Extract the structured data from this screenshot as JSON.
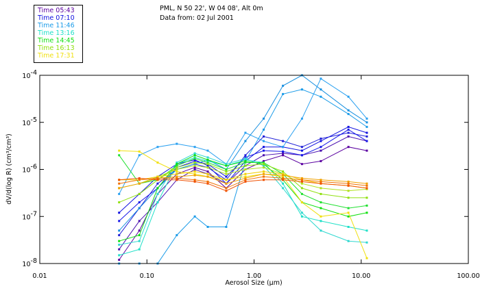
{
  "header": {
    "title_line1": "PML, N 50 22', W 04 08', Alt 0m",
    "title_line2": "Data from: 02 Jul 2001"
  },
  "legend": [
    {
      "label": "Time 05:43",
      "color": "#5a00a0"
    },
    {
      "label": "Time 07:10",
      "color": "#1010e0"
    },
    {
      "label": "Time 11:46",
      "color": "#1a9be8"
    },
    {
      "label": "Time 13:16",
      "color": "#20e0c8"
    },
    {
      "label": "Time 14:45",
      "color": "#10e010"
    },
    {
      "label": "Time 16:13",
      "color": "#90e010"
    },
    {
      "label": "Time 17:31",
      "color": "#f0e010"
    }
  ],
  "chart_data": {
    "type": "line",
    "title": "PML, N 50 22', W 04 08', Alt 0m",
    "subtitle": "Data from: 02 Jul 2001",
    "xlabel": "Aerosol Size (µm)",
    "ylabel": "dV/d(log R) (cm³/cm³)",
    "xscale": "log",
    "yscale": "log",
    "xlim": [
      0.01,
      100
    ],
    "ylim": [
      1e-08,
      0.0001
    ],
    "xticks": [
      {
        "value": 0.01,
        "label": "0.01"
      },
      {
        "value": 0.1,
        "label": "0.10"
      },
      {
        "value": 1,
        "label": "1.00"
      },
      {
        "value": 10,
        "label": "10.00"
      },
      {
        "value": 100,
        "label": "100.00"
      }
    ],
    "yticks": [
      {
        "value": 0.0001,
        "base": "10",
        "exp": "-4"
      },
      {
        "value": 1e-05,
        "base": "10",
        "exp": "-5"
      },
      {
        "value": 1e-06,
        "base": "10",
        "exp": "-6"
      },
      {
        "value": 1e-07,
        "base": "10",
        "exp": "-7"
      },
      {
        "value": 1e-08,
        "base": "10",
        "exp": "-8"
      }
    ],
    "legend_position": "top-left-outside",
    "grid": false,
    "x": [
      0.055,
      0.085,
      0.126,
      0.19,
      0.28,
      0.37,
      0.55,
      0.83,
      1.23,
      1.86,
      2.8,
      4.2,
      7.6,
      11.3
    ],
    "series": [
      {
        "name": "Time 05:43",
        "color": "#5a00a0",
        "values": [
          1.2e-08,
          5e-08,
          3e-07,
          8e-07,
          1.1e-06,
          9e-07,
          4e-07,
          1e-06,
          1.5e-06,
          2e-06,
          1.3e-06,
          1.5e-06,
          3e-06,
          2.5e-06
        ]
      },
      {
        "name": "Time 05:43",
        "color": "#4a10b0",
        "values": [
          2e-08,
          8e-08,
          2e-07,
          6e-07,
          1e-06,
          8e-07,
          5e-07,
          1.2e-06,
          2e-06,
          2.2e-06,
          2e-06,
          2.5e-06,
          5e-06,
          4e-06
        ]
      },
      {
        "name": "Time 07:10",
        "color": "#1010e0",
        "values": [
          1.2e-07,
          3e-07,
          7e-07,
          1.3e-06,
          1.6e-06,
          1.2e-06,
          5e-07,
          1.5e-06,
          3e-06,
          3e-06,
          2.5e-06,
          4e-06,
          8e-06,
          6e-06
        ]
      },
      {
        "name": "Time 07:10",
        "color": "#2020d8",
        "values": [
          4e-08,
          1.5e-07,
          5e-07,
          1e-06,
          1.3e-06,
          1.1e-06,
          6e-07,
          2e-06,
          5e-06,
          4e-06,
          3e-06,
          4.5e-06,
          6e-06,
          5e-06
        ]
      },
      {
        "name": "Time 07:10",
        "color": "#1818e8",
        "values": [
          8e-08,
          2e-07,
          4e-07,
          1.1e-06,
          1.5e-06,
          1.3e-06,
          7e-07,
          1.8e-06,
          2.5e-06,
          2.4e-06,
          2e-06,
          3e-06,
          7e-06,
          4e-06
        ]
      },
      {
        "name": "Time 11:46",
        "color": "#1a9be8",
        "values": [
          1e-08,
          1e-08,
          1e-08,
          4e-08,
          1e-07,
          6e-08,
          6e-08,
          1.5e-06,
          7e-06,
          4e-05,
          5e-05,
          3.5e-05,
          1.5e-05,
          8e-06
        ]
      },
      {
        "name": "Time 11:46",
        "color": "#2aa0f0",
        "values": [
          3e-07,
          2e-06,
          3e-06,
          3.5e-06,
          3e-06,
          2.5e-06,
          1.3e-06,
          6e-06,
          4e-06,
          3e-06,
          1.2e-05,
          8.5e-05,
          3.5e-05,
          1.2e-05
        ]
      },
      {
        "name": "Time 11:46",
        "color": "#1890e0",
        "values": [
          5e-08,
          1.5e-07,
          4e-07,
          1e-06,
          1.3e-06,
          1.6e-06,
          1e-06,
          4e-06,
          1.2e-05,
          6e-05,
          0.0001,
          5e-05,
          1.8e-05,
          1e-05
        ]
      },
      {
        "name": "Time 13:16",
        "color": "#20e0c8",
        "values": [
          1.5e-08,
          2e-08,
          2e-07,
          1.3e-06,
          1.8e-06,
          1.5e-06,
          1.2e-06,
          1.6e-06,
          1.4e-06,
          5e-07,
          1e-07,
          8e-08,
          6e-08,
          5e-08
        ]
      },
      {
        "name": "Time 13:16",
        "color": "#30d8d0",
        "values": [
          2.5e-08,
          3e-08,
          3e-07,
          1.4e-06,
          2.2e-06,
          1.8e-06,
          1.3e-06,
          1.7e-06,
          1.2e-06,
          4e-07,
          1.2e-07,
          5e-08,
          3e-08,
          2.8e-08
        ]
      },
      {
        "name": "Time 14:45",
        "color": "#10e010",
        "values": [
          3e-08,
          4e-08,
          4e-07,
          1.3e-06,
          2e-06,
          1.6e-06,
          1.2e-06,
          1.5e-06,
          1.3e-06,
          6e-07,
          2e-07,
          1.5e-07,
          1e-07,
          1.2e-07
        ]
      },
      {
        "name": "Time 14:45",
        "color": "#20e030",
        "values": [
          2e-06,
          5e-07,
          6e-07,
          1.2e-06,
          1.7e-06,
          1.4e-06,
          1e-06,
          1.4e-06,
          1.4e-06,
          8e-07,
          3e-07,
          2e-07,
          1.5e-07,
          1.7e-07
        ]
      },
      {
        "name": "Time 16:13",
        "color": "#90e010",
        "values": [
          2e-07,
          3e-07,
          6e-07,
          1.1e-06,
          1.4e-06,
          1.3e-06,
          9e-07,
          1.2e-06,
          1.3e-06,
          9e-07,
          4e-07,
          3e-07,
          2.5e-07,
          2.5e-07
        ]
      },
      {
        "name": "Time 16:13",
        "color": "#b0e020",
        "values": [
          4e-07,
          5e-07,
          7e-07,
          1e-06,
          1.2e-06,
          1.1e-06,
          8e-07,
          1e-06,
          1.1e-06,
          8e-07,
          5e-07,
          4e-07,
          3.5e-07,
          3.8e-07
        ]
      },
      {
        "name": "Time 17:31",
        "color": "#f0e010",
        "values": [
          2.5e-06,
          2.4e-06,
          1.4e-06,
          9e-07,
          8e-07,
          7e-07,
          6e-07,
          7e-07,
          8e-07,
          7e-07,
          2e-07,
          1e-07,
          1.2e-07,
          1.3e-08
        ]
      },
      {
        "name": "Time 17:31",
        "color": "#f0d000",
        "values": [
          6e-07,
          6e-07,
          7e-07,
          8e-07,
          9e-07,
          8e-07,
          6e-07,
          8e-07,
          9e-07,
          8e-07,
          6e-07,
          5e-07,
          4.5e-07,
          4e-07
        ]
      },
      {
        "name": "",
        "color": "#f0a000",
        "values": [
          4e-07,
          5e-07,
          6.5e-07,
          7e-07,
          7.5e-07,
          7e-07,
          5e-07,
          6.5e-07,
          8e-07,
          7.5e-07,
          6.5e-07,
          6e-07,
          5.5e-07,
          5e-07
        ]
      },
      {
        "name": "",
        "color": "#f07000",
        "values": [
          5e-07,
          6e-07,
          6.5e-07,
          6.5e-07,
          6e-07,
          5.5e-07,
          4e-07,
          6e-07,
          7e-07,
          6.5e-07,
          6e-07,
          5.5e-07,
          5e-07,
          4.5e-07
        ]
      },
      {
        "name": "",
        "color": "#f05000",
        "values": [
          6e-07,
          6.5e-07,
          6e-07,
          6e-07,
          5.5e-07,
          5e-07,
          3.5e-07,
          5.5e-07,
          6e-07,
          6e-07,
          5.5e-07,
          5e-07,
          4.5e-07,
          4e-07
        ]
      }
    ]
  }
}
